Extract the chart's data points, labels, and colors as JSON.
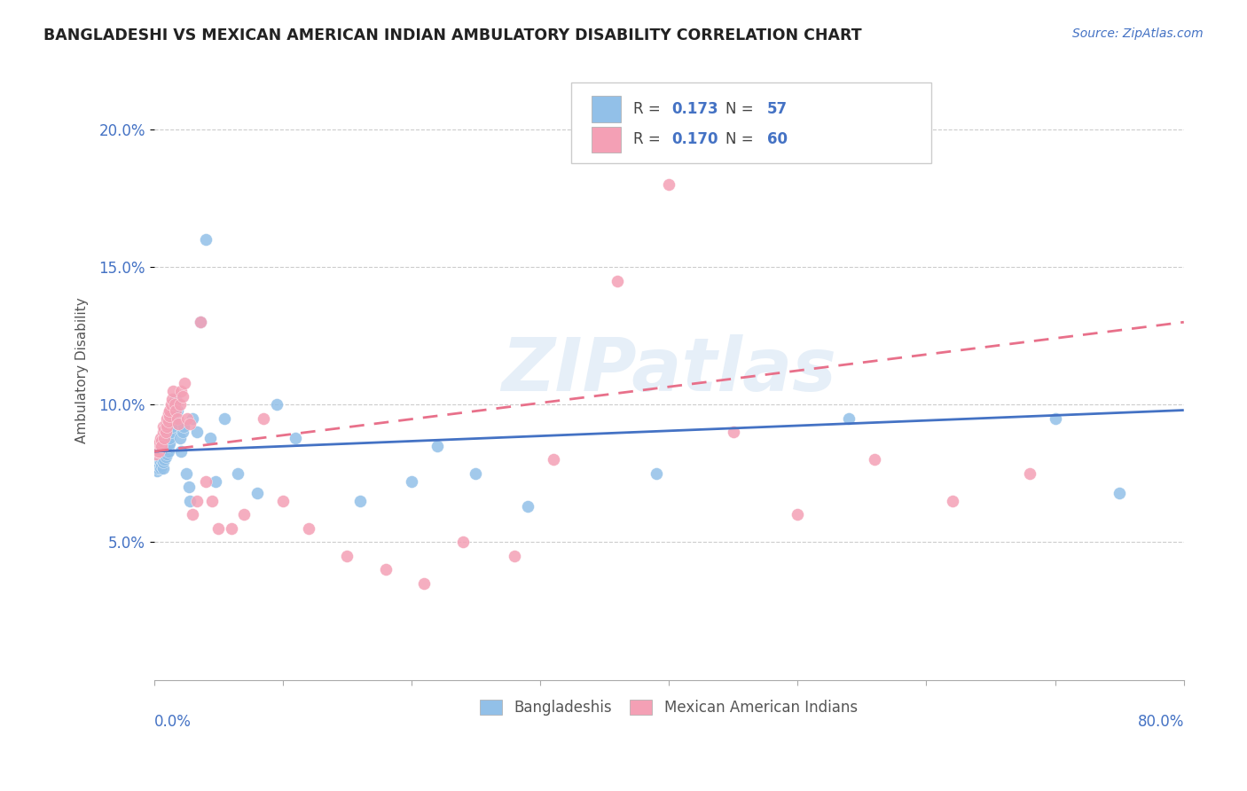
{
  "title": "BANGLADESHI VS MEXICAN AMERICAN INDIAN AMBULATORY DISABILITY CORRELATION CHART",
  "source": "Source: ZipAtlas.com",
  "ylabel": "Ambulatory Disability",
  "ytick_labels": [
    "5.0%",
    "10.0%",
    "15.0%",
    "20.0%"
  ],
  "ytick_values": [
    0.05,
    0.1,
    0.15,
    0.2
  ],
  "xlim": [
    0.0,
    0.8
  ],
  "ylim": [
    0.0,
    0.225
  ],
  "color_blue": "#92C0E8",
  "color_pink": "#F4A0B5",
  "color_blue_line": "#4472C4",
  "color_pink_line": "#E8708A",
  "watermark": "ZIPatlas",
  "bangladeshi_x": [
    0.001,
    0.002,
    0.002,
    0.003,
    0.003,
    0.004,
    0.004,
    0.005,
    0.005,
    0.006,
    0.006,
    0.007,
    0.007,
    0.008,
    0.008,
    0.009,
    0.009,
    0.01,
    0.01,
    0.011,
    0.011,
    0.012,
    0.012,
    0.013,
    0.014,
    0.015,
    0.016,
    0.017,
    0.018,
    0.019,
    0.02,
    0.021,
    0.022,
    0.023,
    0.025,
    0.027,
    0.028,
    0.03,
    0.033,
    0.036,
    0.04,
    0.044,
    0.048,
    0.055,
    0.065,
    0.08,
    0.095,
    0.11,
    0.16,
    0.2,
    0.22,
    0.25,
    0.29,
    0.39,
    0.54,
    0.7,
    0.75
  ],
  "bangladeshi_y": [
    0.077,
    0.076,
    0.078,
    0.077,
    0.079,
    0.078,
    0.08,
    0.077,
    0.079,
    0.078,
    0.08,
    0.077,
    0.079,
    0.08,
    0.082,
    0.081,
    0.083,
    0.082,
    0.084,
    0.083,
    0.085,
    0.086,
    0.088,
    0.09,
    0.092,
    0.095,
    0.1,
    0.102,
    0.098,
    0.093,
    0.088,
    0.083,
    0.09,
    0.092,
    0.075,
    0.07,
    0.065,
    0.095,
    0.09,
    0.13,
    0.16,
    0.088,
    0.072,
    0.095,
    0.075,
    0.068,
    0.1,
    0.088,
    0.065,
    0.072,
    0.085,
    0.075,
    0.063,
    0.075,
    0.095,
    0.095,
    0.068
  ],
  "mexican_x": [
    0.001,
    0.002,
    0.002,
    0.003,
    0.003,
    0.004,
    0.004,
    0.005,
    0.005,
    0.006,
    0.006,
    0.007,
    0.007,
    0.008,
    0.008,
    0.009,
    0.009,
    0.01,
    0.01,
    0.011,
    0.011,
    0.012,
    0.012,
    0.013,
    0.014,
    0.015,
    0.016,
    0.017,
    0.018,
    0.019,
    0.02,
    0.021,
    0.022,
    0.024,
    0.026,
    0.028,
    0.03,
    0.033,
    0.036,
    0.04,
    0.045,
    0.05,
    0.06,
    0.07,
    0.085,
    0.1,
    0.12,
    0.15,
    0.18,
    0.21,
    0.24,
    0.28,
    0.31,
    0.36,
    0.4,
    0.45,
    0.5,
    0.56,
    0.62,
    0.68
  ],
  "mexican_y": [
    0.082,
    0.085,
    0.083,
    0.086,
    0.084,
    0.083,
    0.086,
    0.085,
    0.088,
    0.087,
    0.085,
    0.09,
    0.092,
    0.088,
    0.091,
    0.09,
    0.093,
    0.092,
    0.095,
    0.094,
    0.097,
    0.096,
    0.098,
    0.1,
    0.102,
    0.105,
    0.1,
    0.098,
    0.095,
    0.093,
    0.1,
    0.105,
    0.103,
    0.108,
    0.095,
    0.093,
    0.06,
    0.065,
    0.13,
    0.072,
    0.065,
    0.055,
    0.055,
    0.06,
    0.095,
    0.065,
    0.055,
    0.045,
    0.04,
    0.035,
    0.05,
    0.045,
    0.08,
    0.145,
    0.18,
    0.09,
    0.06,
    0.08,
    0.065,
    0.075
  ]
}
